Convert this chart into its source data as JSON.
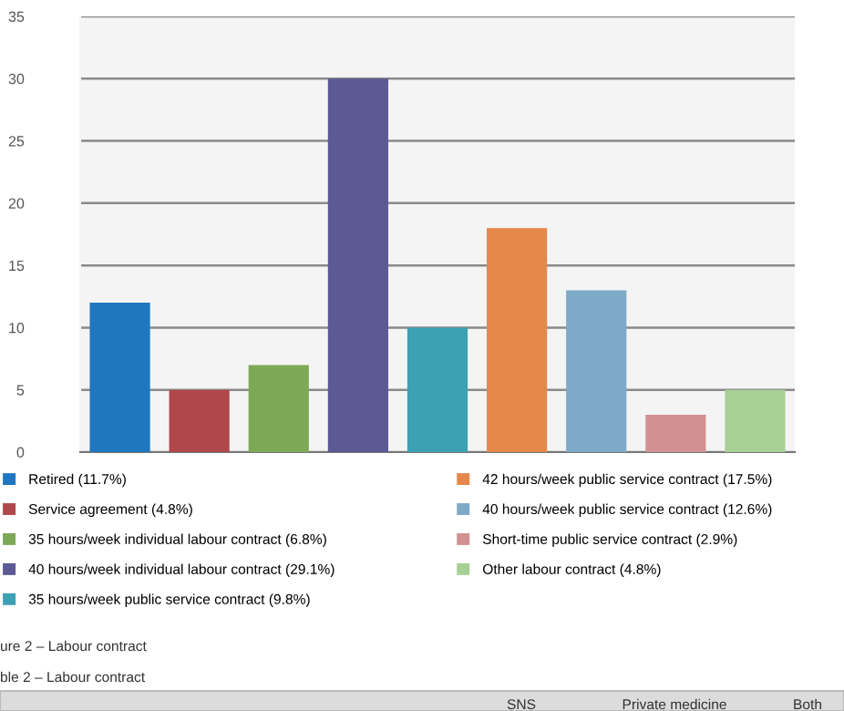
{
  "chart_data": {
    "type": "bar",
    "categories": [
      null,
      null,
      null,
      null,
      null,
      null,
      null,
      null,
      null
    ],
    "series": [
      {
        "name": "Retired (11.7%)",
        "color": "#1f77c0",
        "values": [
          12,
          null,
          null,
          null,
          null,
          null,
          null,
          null,
          null
        ]
      },
      {
        "name": "Service agreement (4.8%)",
        "color": "#b0484b",
        "values": [
          null,
          5,
          null,
          null,
          null,
          null,
          null,
          null,
          null
        ]
      },
      {
        "name": "35 hours/week individual labour contract (6.8%)",
        "color": "#7da957",
        "values": [
          null,
          null,
          7,
          null,
          null,
          null,
          null,
          null,
          null
        ]
      },
      {
        "name": "40 hours/week individual labour contract (29.1%)",
        "color": "#5b5a94",
        "values": [
          null,
          null,
          null,
          30,
          null,
          null,
          null,
          null,
          null
        ]
      },
      {
        "name": "35 hours/week public service contract (9.8%)",
        "color": "#3ca1b2",
        "values": [
          null,
          null,
          null,
          null,
          10,
          null,
          null,
          null,
          null
        ]
      },
      {
        "name": "42 hours/week public service contract (17.5%)",
        "color": "#e6874a",
        "values": [
          null,
          null,
          null,
          null,
          null,
          18,
          null,
          null,
          null
        ]
      },
      {
        "name": "40 hours/week public service contract (12.6%)",
        "color": "#7eaac8",
        "values": [
          null,
          null,
          null,
          null,
          null,
          null,
          13,
          null,
          null
        ]
      },
      {
        "name": "Short-time public service contract (2.9%)",
        "color": "#d39092",
        "values": [
          null,
          null,
          null,
          null,
          null,
          null,
          null,
          3,
          null
        ]
      },
      {
        "name": "Other labour contract (4.8%)",
        "color": "#a7d096",
        "values": [
          null,
          null,
          null,
          null,
          null,
          null,
          null,
          null,
          5
        ]
      }
    ],
    "ylim": [
      0,
      35
    ],
    "yticks": [
      0,
      5,
      10,
      15,
      20,
      25,
      30,
      35
    ],
    "grid": "y",
    "legend": "bottom",
    "annotations": [
      "ure 2 – Labour contract",
      "ble 2 – Labour contract",
      "SNS",
      "Private medicine",
      "Both"
    ]
  }
}
